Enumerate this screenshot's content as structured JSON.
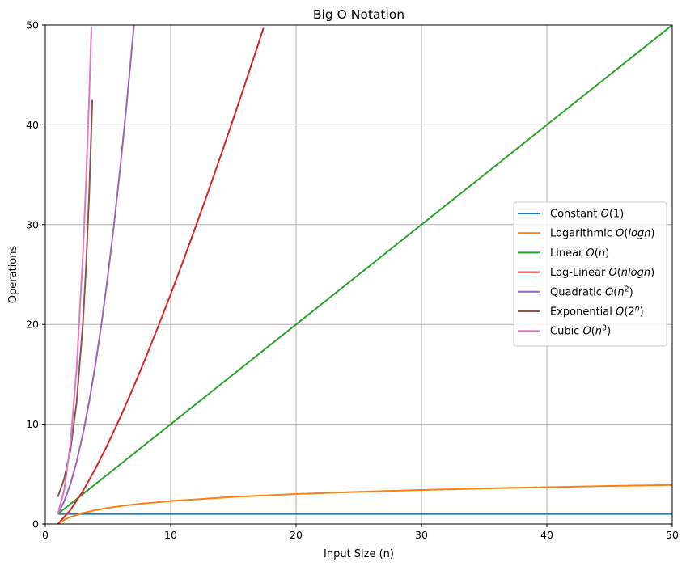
{
  "chart_data": {
    "type": "line",
    "title": "Big O Notation",
    "xlabel": "Input Size (n)",
    "ylabel": "Operations",
    "xlim": [
      0,
      50
    ],
    "ylim": [
      0,
      50
    ],
    "grid": true,
    "legend_position": "center-right",
    "x_ticks": [
      0,
      10,
      20,
      30,
      40,
      50
    ],
    "y_ticks": [
      0,
      10,
      20,
      30,
      40,
      50
    ],
    "series": [
      {
        "name": "Constant O(1)",
        "label_prefix": "Constant ",
        "label_math": "O(1)",
        "color": "#1f77b4",
        "x": [
          1,
          5,
          10,
          15,
          20,
          25,
          30,
          35,
          40,
          45,
          50
        ],
        "y": [
          1,
          1,
          1,
          1,
          1,
          1,
          1,
          1,
          1,
          1,
          1
        ]
      },
      {
        "name": "Logarithmic O(logn)",
        "label_prefix": "Logarithmic ",
        "label_math": "O(logn)",
        "color": "#ff7f0e",
        "x": [
          1,
          1.5,
          2,
          3,
          4,
          5,
          7,
          10,
          15,
          20,
          25,
          30,
          35,
          40,
          45,
          50
        ],
        "y": [
          0,
          0.41,
          0.69,
          1.1,
          1.39,
          1.61,
          1.95,
          2.3,
          2.71,
          3.0,
          3.22,
          3.4,
          3.56,
          3.69,
          3.81,
          3.91
        ]
      },
      {
        "name": "Linear O(n)",
        "label_prefix": "Linear ",
        "label_math": "O(n)",
        "color": "#2ca02c",
        "x": [
          1,
          10,
          20,
          30,
          40,
          50
        ],
        "y": [
          1,
          10,
          20,
          30,
          40,
          50
        ]
      },
      {
        "name": "Log-Linear O(nlogn)",
        "label_prefix": "Log-Linear ",
        "label_math": "O(nlogn)",
        "color": "#d62728",
        "x": [
          1,
          2,
          3,
          4,
          5,
          6,
          7,
          8,
          9,
          10,
          11,
          12,
          13,
          14,
          15,
          16,
          17,
          17.4
        ],
        "y": [
          0,
          1.39,
          3.3,
          5.55,
          8.05,
          10.75,
          13.62,
          16.64,
          19.78,
          23.03,
          26.38,
          29.82,
          33.34,
          36.95,
          40.62,
          44.36,
          48.16,
          49.7
        ]
      },
      {
        "name": "Quadratic O(n^2)",
        "label_prefix": "Quadratic ",
        "label_math": "O(n2)",
        "color": "#9467bd",
        "x": [
          1,
          1.5,
          2,
          2.5,
          3,
          3.5,
          4,
          4.5,
          5,
          5.5,
          6,
          6.5,
          7,
          7.07
        ],
        "y": [
          1,
          2.25,
          4,
          6.25,
          9,
          12.25,
          16,
          20.25,
          25,
          30.25,
          36,
          42.25,
          49,
          50
        ]
      },
      {
        "name": "Exponential O(2^n)",
        "label_prefix": "Exponential ",
        "label_math": "O(2n)",
        "color": "#8c564b",
        "x": [
          1,
          1.5,
          2,
          2.5,
          3,
          3.25,
          3.5,
          3.75
        ],
        "y": [
          2.72,
          4.5,
          7.4,
          12.2,
          20.1,
          25.8,
          33.1,
          42.5
        ]
      },
      {
        "name": "Cubic O(n^3)",
        "label_prefix": "Cubic ",
        "label_math": "O(n3)",
        "color": "#e377c2",
        "x": [
          1,
          1.5,
          2,
          2.5,
          3,
          3.25,
          3.5,
          3.68
        ],
        "y": [
          1,
          3.38,
          8,
          15.63,
          27,
          34.33,
          42.88,
          49.8
        ]
      }
    ]
  }
}
